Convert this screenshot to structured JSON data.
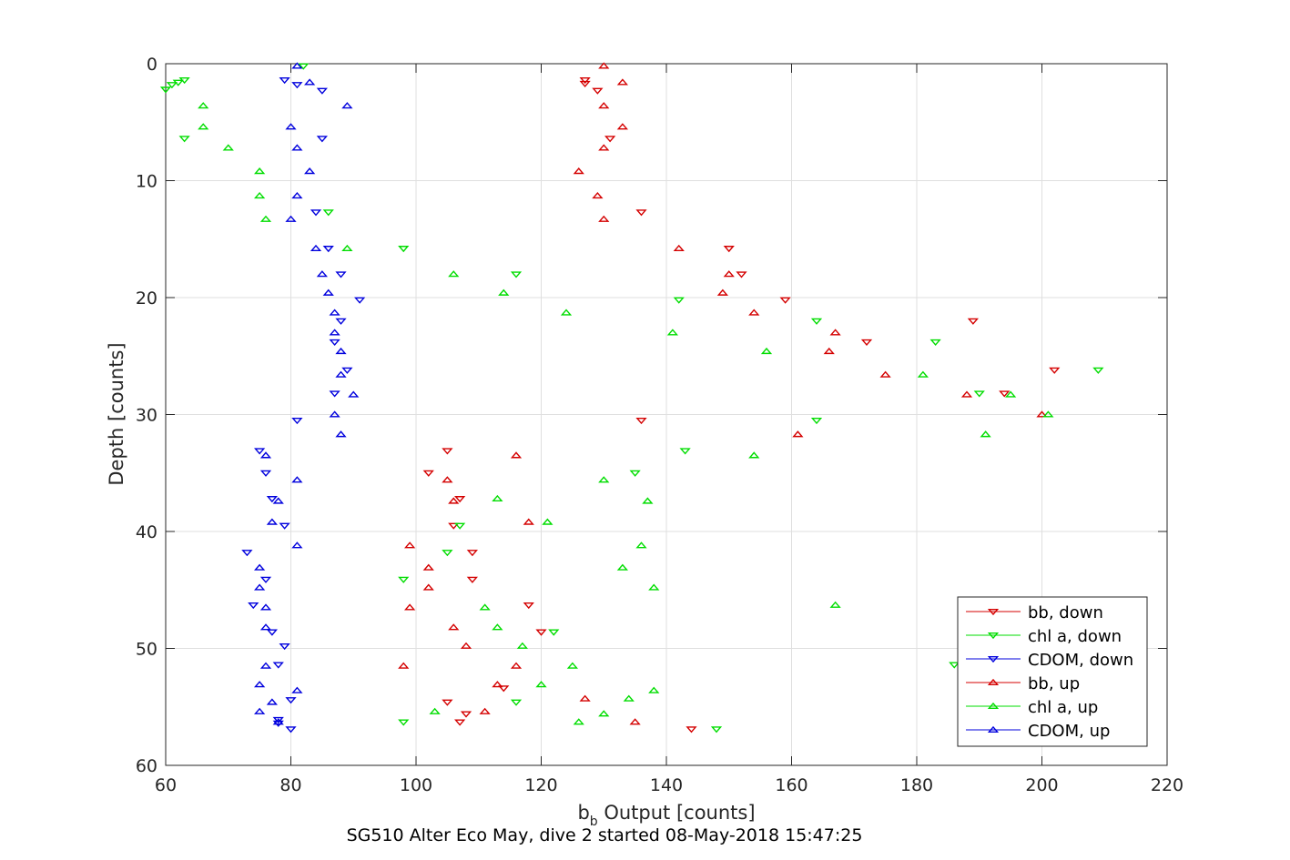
{
  "chart_data": {
    "type": "scatter",
    "title": "",
    "xlabel": {
      "base": "b",
      "sub": "b",
      "rest": " Output [counts]"
    },
    "ylabel": "Depth [counts]",
    "caption": "SG510 Alter Eco May, dive 2 started 08-May-2018 15:47:25",
    "xlim": [
      60,
      220
    ],
    "ylim": [
      0,
      60
    ],
    "y_reversed": true,
    "xticks": [
      "60",
      "80",
      "100",
      "120",
      "140",
      "160",
      "180",
      "200",
      "220"
    ],
    "yticks": [
      "0",
      "10",
      "20",
      "30",
      "40",
      "50",
      "60"
    ],
    "grid": true,
    "legend_position": "bottom-right",
    "series": [
      {
        "name": "bb, down",
        "color": "#d40000",
        "marker": "down",
        "points": [
          [
            127,
            1.4
          ],
          [
            127,
            1.7
          ],
          [
            129,
            2.3
          ],
          [
            131,
            6.4
          ],
          [
            136,
            12.7
          ],
          [
            150,
            15.8
          ],
          [
            152,
            18
          ],
          [
            159,
            20.2
          ],
          [
            189,
            22
          ],
          [
            172,
            23.8
          ],
          [
            202,
            26.2
          ],
          [
            194,
            28.2
          ],
          [
            136,
            30.5
          ],
          [
            105,
            33.1
          ],
          [
            102,
            35
          ],
          [
            107,
            37.2
          ],
          [
            106,
            39.5
          ],
          [
            109,
            41.8
          ],
          [
            109,
            44.1
          ],
          [
            118,
            46.3
          ],
          [
            120,
            48.6
          ],
          [
            114,
            53.4
          ],
          [
            108,
            55.6
          ],
          [
            105,
            54.6
          ],
          [
            107,
            56.3
          ],
          [
            144,
            56.9
          ]
        ]
      },
      {
        "name": "chl a, down",
        "color": "#00dd00",
        "marker": "down",
        "points": [
          [
            82,
            0.2
          ],
          [
            63,
            1.4
          ],
          [
            62,
            1.6
          ],
          [
            61,
            1.8
          ],
          [
            60,
            2.2
          ],
          [
            63,
            6.4
          ],
          [
            86,
            12.7
          ],
          [
            98,
            15.8
          ],
          [
            116,
            18
          ],
          [
            142,
            20.2
          ],
          [
            164,
            22
          ],
          [
            183,
            23.8
          ],
          [
            209,
            26.2
          ],
          [
            190,
            28.2
          ],
          [
            164,
            30.5
          ],
          [
            143,
            33.1
          ],
          [
            135,
            35
          ],
          [
            107,
            39.5
          ],
          [
            105,
            41.8
          ],
          [
            98,
            44.1
          ],
          [
            122,
            48.6
          ],
          [
            186,
            51.4
          ],
          [
            98,
            56.3
          ],
          [
            148,
            56.9
          ],
          [
            116,
            54.6
          ]
        ]
      },
      {
        "name": "CDOM, down",
        "color": "#0000dd",
        "marker": "down",
        "points": [
          [
            79,
            1.4
          ],
          [
            81,
            1.8
          ],
          [
            85,
            2.3
          ],
          [
            85,
            6.4
          ],
          [
            84,
            12.7
          ],
          [
            86,
            15.8
          ],
          [
            88,
            18
          ],
          [
            91,
            20.2
          ],
          [
            88,
            22
          ],
          [
            87,
            23.8
          ],
          [
            89,
            26.2
          ],
          [
            87,
            28.2
          ],
          [
            81,
            30.5
          ],
          [
            75,
            33.1
          ],
          [
            76,
            35
          ],
          [
            77,
            37.2
          ],
          [
            79,
            39.5
          ],
          [
            73,
            41.8
          ],
          [
            76,
            44.1
          ],
          [
            74,
            46.3
          ],
          [
            77,
            48.6
          ],
          [
            79,
            49.8
          ],
          [
            78,
            51.4
          ],
          [
            80,
            54.4
          ],
          [
            78,
            56.1
          ],
          [
            78,
            56.4
          ],
          [
            80,
            56.9
          ]
        ]
      },
      {
        "name": "bb, up",
        "color": "#d40000",
        "marker": "up",
        "points": [
          [
            130,
            0.2
          ],
          [
            133,
            1.6
          ],
          [
            130,
            3.6
          ],
          [
            133,
            5.4
          ],
          [
            130,
            7.2
          ],
          [
            126,
            9.2
          ],
          [
            129,
            11.3
          ],
          [
            130,
            13.3
          ],
          [
            142,
            15.8
          ],
          [
            150,
            18
          ],
          [
            149,
            19.6
          ],
          [
            154,
            21.3
          ],
          [
            167,
            23
          ],
          [
            166,
            24.6
          ],
          [
            175,
            26.6
          ],
          [
            188,
            28.3
          ],
          [
            200,
            30
          ],
          [
            161,
            31.7
          ],
          [
            116,
            33.5
          ],
          [
            105,
            35.6
          ],
          [
            106,
            37.4
          ],
          [
            118,
            39.2
          ],
          [
            99,
            41.2
          ],
          [
            102,
            43.1
          ],
          [
            102,
            44.8
          ],
          [
            99,
            46.5
          ],
          [
            106,
            48.2
          ],
          [
            108,
            49.8
          ],
          [
            98,
            51.5
          ],
          [
            116,
            51.5
          ],
          [
            113,
            53.1
          ],
          [
            127,
            54.3
          ],
          [
            111,
            55.4
          ],
          [
            135,
            56.3
          ]
        ]
      },
      {
        "name": "chl a, up",
        "color": "#00dd00",
        "marker": "up",
        "points": [
          [
            66,
            3.6
          ],
          [
            66,
            5.4
          ],
          [
            70,
            7.2
          ],
          [
            75,
            9.2
          ],
          [
            75,
            11.3
          ],
          [
            76,
            13.3
          ],
          [
            89,
            15.8
          ],
          [
            106,
            18
          ],
          [
            114,
            19.6
          ],
          [
            124,
            21.3
          ],
          [
            141,
            23
          ],
          [
            156,
            24.6
          ],
          [
            181,
            26.6
          ],
          [
            195,
            28.3
          ],
          [
            201,
            30
          ],
          [
            191,
            31.7
          ],
          [
            154,
            33.5
          ],
          [
            130,
            35.6
          ],
          [
            113,
            37.2
          ],
          [
            137,
            37.4
          ],
          [
            121,
            39.2
          ],
          [
            136,
            41.2
          ],
          [
            133,
            43.1
          ],
          [
            138,
            44.8
          ],
          [
            111,
            46.5
          ],
          [
            167,
            46.3
          ],
          [
            113,
            48.2
          ],
          [
            117,
            49.8
          ],
          [
            125,
            51.5
          ],
          [
            120,
            53.1
          ],
          [
            138,
            53.6
          ],
          [
            134,
            54.3
          ],
          [
            103,
            55.4
          ],
          [
            130,
            55.6
          ],
          [
            126,
            56.3
          ]
        ]
      },
      {
        "name": "CDOM, up",
        "color": "#0000dd",
        "marker": "up",
        "points": [
          [
            81,
            0.2
          ],
          [
            83,
            1.6
          ],
          [
            89,
            3.6
          ],
          [
            80,
            5.4
          ],
          [
            81,
            7.2
          ],
          [
            83,
            9.2
          ],
          [
            81,
            11.3
          ],
          [
            80,
            13.3
          ],
          [
            84,
            15.8
          ],
          [
            85,
            18
          ],
          [
            86,
            19.6
          ],
          [
            87,
            21.3
          ],
          [
            87,
            23
          ],
          [
            88,
            24.6
          ],
          [
            88,
            26.6
          ],
          [
            90,
            28.3
          ],
          [
            87,
            30
          ],
          [
            88,
            31.7
          ],
          [
            76,
            33.5
          ],
          [
            81,
            35.6
          ],
          [
            78,
            37.4
          ],
          [
            77,
            39.2
          ],
          [
            81,
            41.2
          ],
          [
            75,
            43.1
          ],
          [
            75,
            44.8
          ],
          [
            76,
            46.5
          ],
          [
            76,
            48.2
          ],
          [
            76,
            51.5
          ],
          [
            75,
            53.1
          ],
          [
            81,
            53.6
          ],
          [
            77,
            54.6
          ],
          [
            75,
            55.4
          ],
          [
            78,
            56.3
          ]
        ]
      }
    ]
  }
}
